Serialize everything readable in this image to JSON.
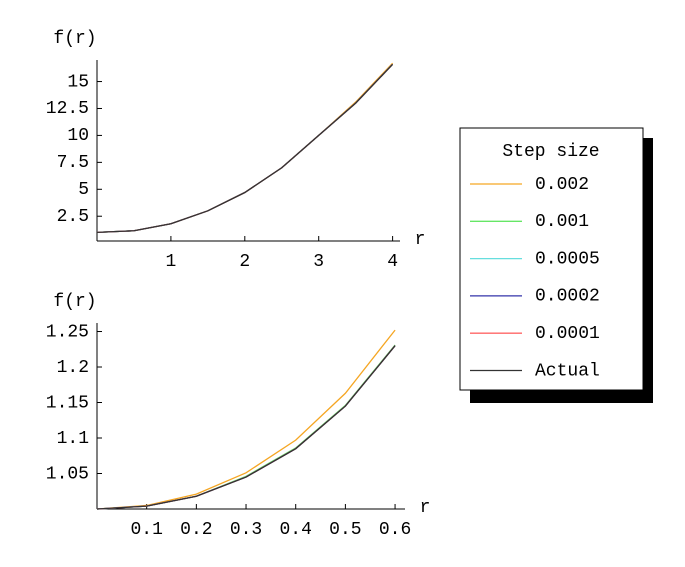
{
  "chart_data": [
    {
      "type": "line",
      "y_label": "f(r)",
      "x_label": "r",
      "legend_title": "Step size",
      "x": [
        0,
        0.5,
        1,
        1.5,
        2,
        2.5,
        3,
        3.5,
        4
      ],
      "xlim": [
        0,
        4.1
      ],
      "ylim": [
        0.2,
        17.0
      ],
      "xticks": [
        1,
        2,
        3,
        4
      ],
      "yticks": [
        2.5,
        5,
        7.5,
        10,
        12.5,
        15
      ],
      "series": [
        {
          "name": "0.002",
          "color": "#f5a623",
          "values": [
            1,
            1.15,
            1.8,
            3.0,
            4.7,
            7.0,
            10.0,
            13.1,
            16.7
          ]
        },
        {
          "name": "0.001",
          "color": "#66e666",
          "values": [
            1,
            1.15,
            1.8,
            3.0,
            4.7,
            7.0,
            10.0,
            13.0,
            16.6
          ]
        },
        {
          "name": "0.0005",
          "color": "#66dede",
          "values": [
            1,
            1.15,
            1.8,
            3.0,
            4.7,
            7.0,
            10.0,
            13.0,
            16.6
          ]
        },
        {
          "name": "0.0002",
          "color": "#3333aa",
          "values": [
            1,
            1.15,
            1.8,
            3.0,
            4.7,
            7.0,
            10.0,
            13.0,
            16.6
          ]
        },
        {
          "name": "0.0001",
          "color": "#ff6666",
          "values": [
            1,
            1.15,
            1.8,
            3.0,
            4.7,
            7.0,
            10.0,
            13.0,
            16.6
          ]
        },
        {
          "name": "Actual",
          "color": "#333333",
          "values": [
            1,
            1.15,
            1.8,
            3.0,
            4.7,
            7.0,
            10.0,
            13.0,
            16.6
          ]
        }
      ]
    },
    {
      "type": "line",
      "y_label": "f(r)",
      "x_label": "r",
      "x": [
        0,
        0.1,
        0.2,
        0.3,
        0.4,
        0.5,
        0.6
      ],
      "xlim": [
        0,
        0.62
      ],
      "ylim": [
        1,
        1.262
      ],
      "xticks": [
        0.1,
        0.2,
        0.3,
        0.4,
        0.5,
        0.6
      ],
      "yticks": [
        1.05,
        1.1,
        1.15,
        1.2,
        1.25
      ],
      "series": [
        {
          "color": "#f5a623",
          "values": [
            1,
            1.005,
            1.021,
            1.051,
            1.097,
            1.163,
            1.252
          ]
        },
        {
          "color": "#66e666",
          "values": [
            1,
            1.004,
            1.018,
            1.046,
            1.086,
            1.146,
            1.231
          ]
        },
        {
          "color": "#66dede",
          "values": [
            1,
            1.004,
            1.018,
            1.045,
            1.085,
            1.145,
            1.23
          ]
        },
        {
          "color": "#3333aa",
          "values": [
            1,
            1.004,
            1.018,
            1.045,
            1.085,
            1.145,
            1.23
          ]
        },
        {
          "color": "#ff6666",
          "values": [
            1,
            1.004,
            1.018,
            1.045,
            1.085,
            1.145,
            1.23
          ]
        },
        {
          "color": "#333333",
          "values": [
            1,
            1.004,
            1.018,
            1.045,
            1.085,
            1.145,
            1.23
          ]
        }
      ]
    }
  ]
}
